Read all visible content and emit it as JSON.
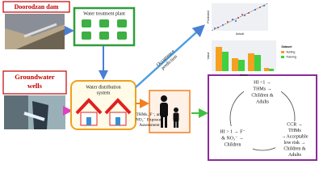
{
  "sources": [
    {
      "lines": [
        "Doorodzan dam"
      ]
    },
    {
      "lines": [
        "Groundwater",
        "wells"
      ]
    }
  ],
  "treatment_plant": {
    "label": "Water treatment plant"
  },
  "distribution": {
    "lines": [
      "Water distribution",
      "system"
    ]
  },
  "prediction": {
    "lines": [
      "Occurrence",
      "prediction"
    ]
  },
  "assessment": {
    "lines": [
      "THMs, F⁻, and",
      "NO₃⁻ Exposure",
      "Assessment"
    ]
  },
  "charts": {
    "scatter": {
      "x_label": "Actual",
      "y_label": "Predicted"
    },
    "bar": {
      "x_label": "Metric",
      "y_label": "Value",
      "legend_title": "Dataset",
      "legend": [
        "Testing",
        "Training"
      ]
    }
  },
  "outcomes": [
    {
      "lines": [
        "HI <1 →",
        "THMs →",
        "Children &",
        "Adults"
      ]
    },
    {
      "lines": [
        "HI > 1 → F⁻",
        "& NO₃⁻ →",
        "Children"
      ]
    },
    {
      "lines": [
        "CCR →",
        "THMs",
        "→Acceptable",
        "low risk →",
        "Children &",
        "Adults"
      ]
    }
  ]
}
